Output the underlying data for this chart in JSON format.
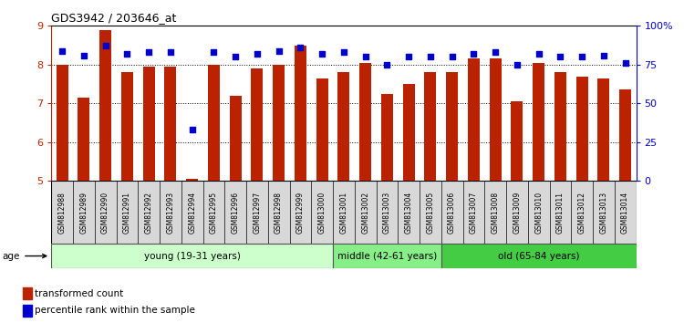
{
  "title": "GDS3942 / 203646_at",
  "samples": [
    "GSM812988",
    "GSM812989",
    "GSM812990",
    "GSM812991",
    "GSM812992",
    "GSM812993",
    "GSM812994",
    "GSM812995",
    "GSM812996",
    "GSM812997",
    "GSM812998",
    "GSM812999",
    "GSM813000",
    "GSM813001",
    "GSM813002",
    "GSM813003",
    "GSM813004",
    "GSM813005",
    "GSM813006",
    "GSM813007",
    "GSM813008",
    "GSM813009",
    "GSM813010",
    "GSM813011",
    "GSM813012",
    "GSM813013",
    "GSM813014"
  ],
  "bar_values": [
    8.0,
    7.15,
    8.9,
    7.8,
    7.95,
    7.95,
    5.05,
    8.0,
    7.2,
    7.9,
    8.0,
    8.5,
    7.65,
    7.8,
    8.05,
    7.25,
    7.5,
    7.8,
    7.8,
    8.15,
    8.15,
    7.05,
    8.05,
    7.8,
    7.7,
    7.65,
    7.35
  ],
  "dot_values": [
    84,
    81,
    87,
    82,
    83,
    83,
    33,
    83,
    80,
    82,
    84,
    86,
    82,
    83,
    80,
    75,
    80,
    80,
    80,
    82,
    83,
    75,
    82,
    80,
    80,
    81,
    76
  ],
  "ylim_left": [
    5,
    9
  ],
  "ylim_right": [
    0,
    100
  ],
  "yticks_left": [
    5,
    6,
    7,
    8,
    9
  ],
  "yticks_right": [
    0,
    25,
    50,
    75,
    100
  ],
  "ytick_labels_right": [
    "0",
    "25",
    "50",
    "75",
    "100%"
  ],
  "bar_color": "#bb2200",
  "dot_color": "#0000cc",
  "bar_bottom": 5,
  "groups": [
    {
      "label": "young (19-31 years)",
      "start": 0,
      "end": 13,
      "color": "#ccffcc"
    },
    {
      "label": "middle (42-61 years)",
      "start": 13,
      "end": 18,
      "color": "#88ee88"
    },
    {
      "label": "old (65-84 years)",
      "start": 18,
      "end": 27,
      "color": "#44cc44"
    }
  ],
  "age_label": "age",
  "legend_bar_label": "transformed count",
  "legend_dot_label": "percentile rank within the sample",
  "cell_bg": "#d8d8d8",
  "plot_bg_color": "#ffffff"
}
